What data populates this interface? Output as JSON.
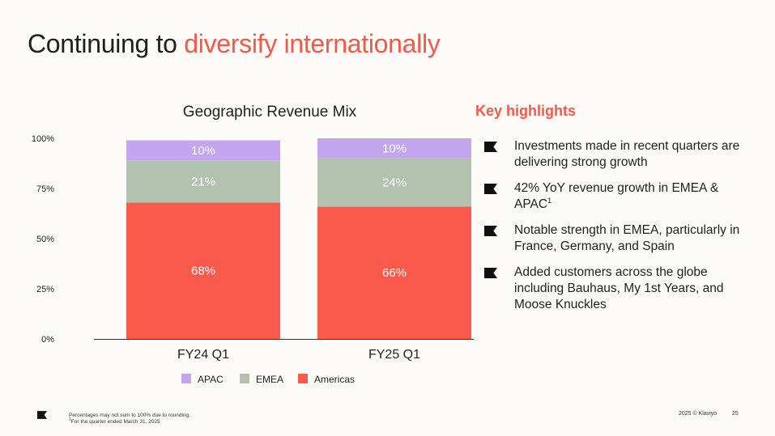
{
  "slide": {
    "title_prefix": "Continuing to ",
    "title_accent": "diversify internationally",
    "accent_color": "#f05a4a"
  },
  "chart_data": {
    "type": "bar",
    "stacked": true,
    "title": "Geographic Revenue Mix",
    "categories": [
      "FY24 Q1",
      "FY25 Q1"
    ],
    "series": [
      {
        "name": "Americas",
        "color": "#f95a4c",
        "values": [
          68,
          66
        ],
        "labels": [
          "68%",
          "66%"
        ]
      },
      {
        "name": "EMEA",
        "color": "#b2c2ae",
        "values": [
          21,
          24
        ],
        "labels": [
          "21%",
          "24%"
        ]
      },
      {
        "name": "APAC",
        "color": "#c4a6ee",
        "values": [
          10,
          10
        ],
        "labels": [
          "10%",
          "10%"
        ]
      }
    ],
    "legend_order": [
      "APAC",
      "EMEA",
      "Americas"
    ],
    "legend_position": "bottom",
    "ylim": [
      0,
      100
    ],
    "yticks": [
      0,
      25,
      50,
      75,
      100
    ],
    "ytick_labels": [
      "0%",
      "25%",
      "50%",
      "75%",
      "100%"
    ],
    "grid": false
  },
  "highlights": {
    "title": "Key highlights",
    "items": [
      {
        "text": "Investments made in recent quarters are delivering strong growth",
        "sup": ""
      },
      {
        "text": "42% YoY revenue growth in EMEA & APAC",
        "sup": "1"
      },
      {
        "text": "Notable strength in EMEA, particularly in France, Germany, and Spain",
        "sup": ""
      },
      {
        "text": "Added customers across the globe including Bauhaus, My 1st Years, and Moose Knuckles",
        "sup": ""
      }
    ]
  },
  "footer": {
    "note_line1": "Percentages may not sum to 100% due to rounding.",
    "note_line2_sup": "1",
    "note_line2": "For the quarter ended March 31, 2025",
    "copyright": "2025 © Klaviyo",
    "page_number": "25"
  }
}
